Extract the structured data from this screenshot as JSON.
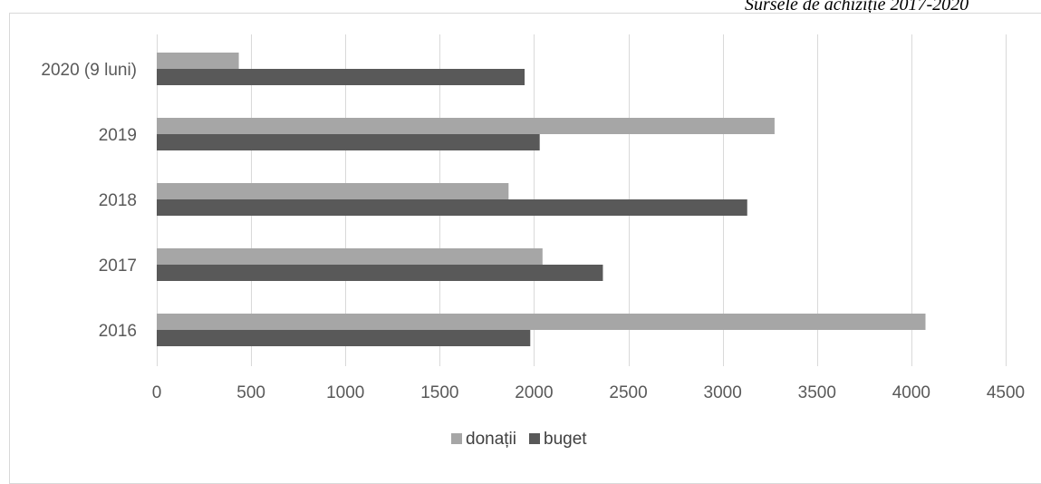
{
  "caption": "Sursele de achiziție 2017-2020",
  "chart_data": {
    "type": "bar",
    "orientation": "horizontal",
    "categories": [
      "2016",
      "2017",
      "2018",
      "2019",
      "2020 (9 luni)"
    ],
    "series": [
      {
        "name": "donații",
        "color": "#a6a6a6",
        "values": [
          4075,
          2045,
          1865,
          3275,
          435
        ]
      },
      {
        "name": "buget",
        "color": "#595959",
        "values": [
          1980,
          2365,
          3130,
          2030,
          1950
        ]
      }
    ],
    "xlim": [
      0,
      4500
    ],
    "xticks": [
      0,
      500,
      1000,
      1500,
      2000,
      2500,
      3000,
      3500,
      4000,
      4500
    ],
    "grid": true,
    "legend_position": "bottom"
  }
}
